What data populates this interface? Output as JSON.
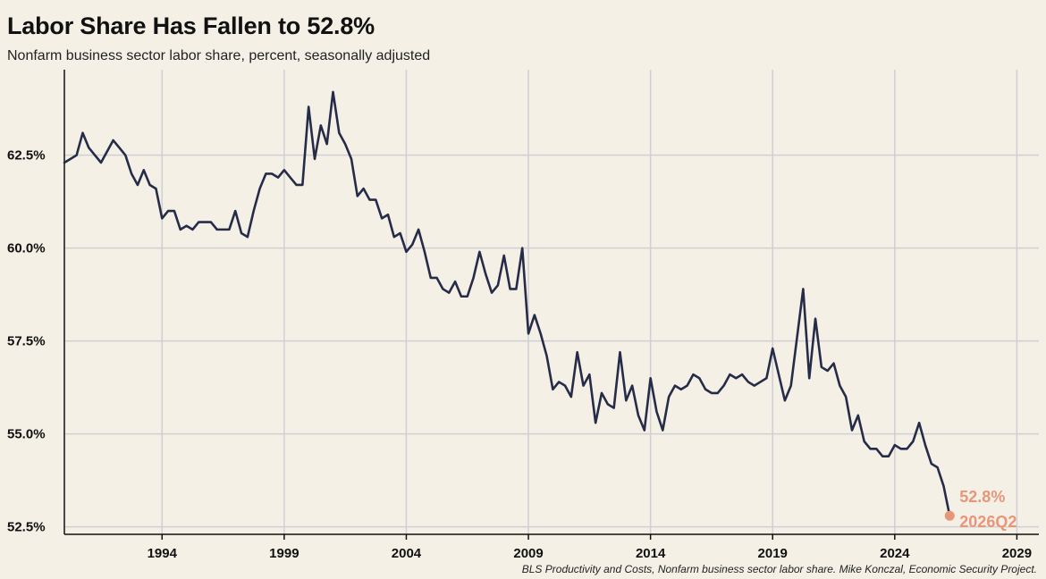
{
  "title": "Labor Share Has Fallen to 52.8%",
  "subtitle": "Nonfarm business sector labor share, percent, seasonally adjusted",
  "source": "BLS Productivity and Costs, Nonfarm business sector labor share. Mike Konczal, Economic Security Project.",
  "colors": {
    "background": "#f4f0e6",
    "line": "#262c48",
    "accent": "#e8967a",
    "grid": "#cfcfd4"
  },
  "chart_data": {
    "type": "line",
    "title": "Labor Share Has Fallen to 52.8%",
    "subtitle": "Nonfarm business sector labor share, percent, seasonally adjusted",
    "xlabel": "",
    "ylabel": "",
    "xlim": [
      1990.0,
      2029.9
    ],
    "ylim": [
      52.3,
      64.8
    ],
    "grid": true,
    "x_ticks": [
      1994,
      1999,
      2004,
      2009,
      2014,
      2019,
      2024,
      2029
    ],
    "x_tick_labels": [
      "1994",
      "1999",
      "2004",
      "2009",
      "2014",
      "2019",
      "2024",
      "2029"
    ],
    "y_ticks": [
      52.5,
      55.0,
      57.5,
      60.0,
      62.5
    ],
    "y_tick_labels": [
      "52.5%",
      "55.0%",
      "57.5%",
      "60.0%",
      "62.5%"
    ],
    "annotation": {
      "value_label": "52.8%",
      "period_label": "2026Q2"
    },
    "series": [
      {
        "x": [
          1990.0,
          1990.25,
          1990.5,
          1990.75,
          1991.0,
          1991.25,
          1991.5,
          1991.75,
          1992.0,
          1992.25,
          1992.5,
          1992.75,
          1993.0,
          1993.25,
          1993.5,
          1993.75,
          1994.0,
          1994.25,
          1994.5,
          1994.75,
          1995.0,
          1995.25,
          1995.5,
          1995.75,
          1996.0,
          1996.25,
          1996.5,
          1996.75,
          1997.0,
          1997.25,
          1997.5,
          1997.75,
          1998.0,
          1998.25,
          1998.5,
          1998.75,
          1999.0,
          1999.25,
          1999.5,
          1999.75,
          2000.0,
          2000.25,
          2000.5,
          2000.75,
          2001.0,
          2001.25,
          2001.5,
          2001.75,
          2002.0,
          2002.25,
          2002.5,
          2002.75,
          2003.0,
          2003.25,
          2003.5,
          2003.75,
          2004.0,
          2004.25,
          2004.5,
          2004.75,
          2005.0,
          2005.25,
          2005.5,
          2005.75,
          2006.0,
          2006.25,
          2006.5,
          2006.75,
          2007.0,
          2007.25,
          2007.5,
          2007.75,
          2008.0,
          2008.25,
          2008.5,
          2008.75,
          2009.0,
          2009.25,
          2009.5,
          2009.75,
          2010.0,
          2010.25,
          2010.5,
          2010.75,
          2011.0,
          2011.25,
          2011.5,
          2011.75,
          2012.0,
          2012.25,
          2012.5,
          2012.75,
          2013.0,
          2013.25,
          2013.5,
          2013.75,
          2014.0,
          2014.25,
          2014.5,
          2014.75,
          2015.0,
          2015.25,
          2015.5,
          2015.75,
          2016.0,
          2016.25,
          2016.5,
          2016.75,
          2017.0,
          2017.25,
          2017.5,
          2017.75,
          2018.0,
          2018.25,
          2018.5,
          2018.75,
          2019.0,
          2019.25,
          2019.5,
          2019.75,
          2020.0,
          2020.25,
          2020.5,
          2020.75,
          2021.0,
          2021.25,
          2021.5,
          2021.75,
          2022.0,
          2022.25,
          2022.5,
          2022.75,
          2023.0,
          2023.25,
          2023.5,
          2023.75,
          2024.0,
          2024.25,
          2024.5,
          2024.75,
          2025.0,
          2025.25,
          2025.5,
          2025.75,
          2026.0,
          2026.25
        ],
        "y": [
          62.3,
          62.4,
          62.5,
          63.1,
          62.7,
          62.5,
          62.3,
          62.6,
          62.9,
          62.7,
          62.5,
          62.0,
          61.7,
          62.1,
          61.7,
          61.6,
          60.8,
          61.0,
          61.0,
          60.5,
          60.6,
          60.5,
          60.7,
          60.7,
          60.7,
          60.5,
          60.5,
          60.5,
          61.0,
          60.4,
          60.3,
          61.0,
          61.6,
          62.0,
          62.0,
          61.9,
          62.1,
          61.9,
          61.7,
          61.7,
          63.8,
          62.4,
          63.3,
          62.8,
          64.2,
          63.1,
          62.8,
          62.4,
          61.4,
          61.6,
          61.3,
          61.3,
          60.8,
          60.9,
          60.3,
          60.4,
          59.9,
          60.1,
          60.5,
          59.9,
          59.2,
          59.2,
          58.9,
          58.8,
          59.1,
          58.7,
          58.7,
          59.2,
          59.9,
          59.3,
          58.8,
          59.0,
          59.8,
          58.9,
          58.9,
          60.0,
          57.7,
          58.2,
          57.7,
          57.1,
          56.2,
          56.4,
          56.3,
          56.0,
          57.2,
          56.3,
          56.6,
          55.3,
          56.1,
          55.8,
          55.7,
          57.2,
          55.9,
          56.3,
          55.5,
          55.1,
          56.5,
          55.6,
          55.1,
          56.0,
          56.3,
          56.2,
          56.3,
          56.6,
          56.5,
          56.2,
          56.1,
          56.1,
          56.3,
          56.6,
          56.5,
          56.6,
          56.4,
          56.3,
          56.4,
          56.5,
          57.3,
          56.6,
          55.9,
          56.3,
          57.6,
          58.9,
          56.5,
          58.1,
          56.8,
          56.7,
          56.9,
          56.3,
          56.0,
          55.1,
          55.5,
          54.8,
          54.6,
          54.6,
          54.4,
          54.4,
          54.7,
          54.6,
          54.6,
          54.8,
          55.3,
          54.7,
          54.2,
          54.1,
          53.6,
          52.8
        ]
      }
    ]
  }
}
